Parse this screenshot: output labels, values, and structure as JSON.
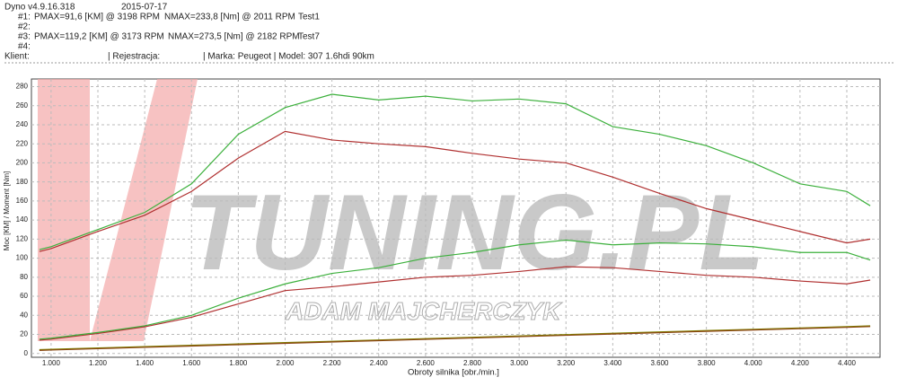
{
  "header": {
    "app": "Dyno v4.9.16.318",
    "date": "2015-07-17",
    "run1": {
      "id": "#1:",
      "pmax": "PMAX=91,6 [KM] @ 3198 RPM",
      "nmax": "NMAX=233,8 [Nm] @ 2011 RPM",
      "test": "Test1"
    },
    "run2": {
      "id": "#2:"
    },
    "run3": {
      "id": "#3:",
      "pmax": "PMAX=119,2 [KM] @ 3173 RPM",
      "nmax": "NMAX=273,5 [Nm] @ 2182 RPM",
      "test": "Test7"
    },
    "run4": {
      "id": "#4:"
    },
    "client": "Klient:",
    "registration": "| Rejestracja:",
    "vehicle": "| Marka: Peugeot | Model: 307 1.6hdi 90km"
  },
  "chart_data": {
    "type": "line",
    "x_label": "Obroty silnika [obr./min.]",
    "y_label": "Moc [KM] / Moment [Nm]",
    "watermark": "TUNING.PL",
    "watermark_sub": "ADAM MAJCHERCZYK",
    "x": [
      950,
      1000,
      1200,
      1400,
      1600,
      1800,
      2000,
      2200,
      2400,
      2600,
      2800,
      3000,
      3200,
      3400,
      3600,
      3800,
      4000,
      4200,
      4400,
      4500
    ],
    "series": [
      {
        "color": "#b03030",
        "values": [
          107,
          110,
          128,
          145,
          170,
          205,
          233,
          224,
          220,
          217,
          210,
          204,
          200,
          185,
          168,
          152,
          140,
          128,
          116,
          120
        ]
      },
      {
        "color": "#3cb03c",
        "values": [
          109,
          112,
          130,
          148,
          178,
          230,
          258,
          272,
          266,
          270,
          265,
          267,
          262,
          238,
          230,
          218,
          200,
          178,
          170,
          155
        ]
      },
      {
        "color": "#b03030",
        "values": [
          14,
          15,
          21,
          28,
          38,
          52,
          66,
          70,
          75,
          80,
          82,
          86,
          91,
          90,
          86,
          82,
          80,
          76,
          73,
          77
        ]
      },
      {
        "color": "#3cb03c",
        "values": [
          15,
          16,
          22,
          29,
          40,
          58,
          73,
          84,
          90,
          100,
          106,
          114,
          119,
          114,
          116,
          115,
          112,
          106,
          106,
          98
        ]
      },
      {
        "color": "#808000",
        "values": [
          4,
          4.4,
          5.8,
          7.2,
          8.6,
          10,
          11.4,
          12.8,
          14.2,
          15.6,
          17,
          18.4,
          19.8,
          21.2,
          22.6,
          24,
          25.4,
          26.8,
          28.2,
          29
        ]
      },
      {
        "color": "#8b4513",
        "values": [
          3.2,
          3.6,
          5,
          6.4,
          7.8,
          9.2,
          10.6,
          12,
          13.4,
          14.8,
          16.2,
          17.6,
          19,
          20.4,
          21.8,
          23.2,
          24.6,
          26,
          27.4,
          28.2
        ]
      }
    ],
    "xlim": [
      916,
      4542
    ],
    "ylim": [
      -4,
      288
    ],
    "xticks": [
      {
        "value": 1000,
        "label": "1.000"
      },
      {
        "value": 1200,
        "label": "1.200"
      },
      {
        "value": 1400,
        "label": "1.400"
      },
      {
        "value": 1600,
        "label": "1.600"
      },
      {
        "value": 1800,
        "label": "1.800"
      },
      {
        "value": 2000,
        "label": "2.000"
      },
      {
        "value": 2200,
        "label": "2.200"
      },
      {
        "value": 2400,
        "label": "2.400"
      },
      {
        "value": 2600,
        "label": "2.600"
      },
      {
        "value": 2800,
        "label": "2.800"
      },
      {
        "value": 3000,
        "label": "3.000"
      },
      {
        "value": 3200,
        "label": "3.200"
      },
      {
        "value": 3400,
        "label": "3.400"
      },
      {
        "value": 3600,
        "label": "3.600"
      },
      {
        "value": 3800,
        "label": "3.800"
      },
      {
        "value": 4000,
        "label": "4.000"
      },
      {
        "value": 4200,
        "label": "4.200"
      },
      {
        "value": 4400,
        "label": "4.400"
      }
    ],
    "yticks": [
      0,
      20,
      40,
      60,
      80,
      100,
      120,
      140,
      160,
      180,
      200,
      220,
      240,
      260,
      280
    ],
    "grid": true
  }
}
